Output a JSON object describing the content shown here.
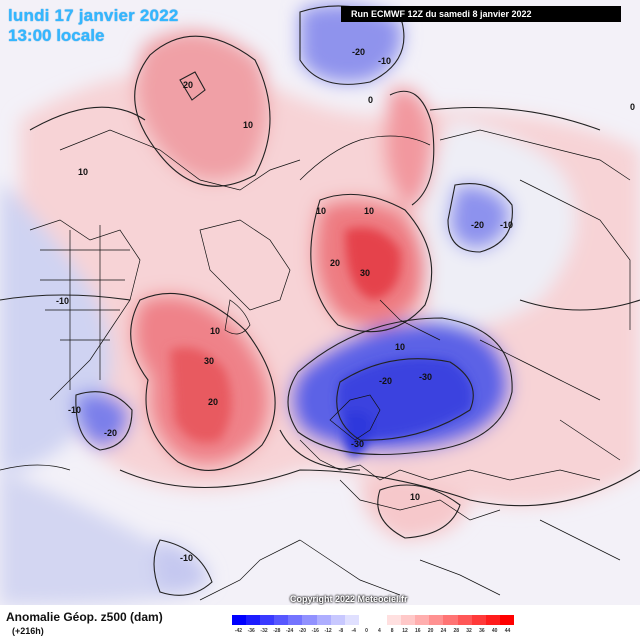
{
  "header": {
    "date": "lundi 17 janvier 2022",
    "time": "13:00 locale",
    "run": "Run ECMWF 12Z du samedi 8 janvier 2022"
  },
  "footer": {
    "title": "Anomalie Géop. z500 (dam)",
    "lead": "(+216h)",
    "copyright": "Copyright 2022 Meteociel.fr"
  },
  "scale": {
    "colors": [
      "#0000ff",
      "#1d1dff",
      "#3a3aff",
      "#5757ff",
      "#7474ff",
      "#9191ff",
      "#aeaeff",
      "#c8c8ff",
      "#e0e0ff",
      "#ffffff",
      "#ffffff",
      "#ffe0e0",
      "#ffc8c8",
      "#ffaeae",
      "#ff9191",
      "#ff7474",
      "#ff5757",
      "#ff3a3a",
      "#ff1d1d",
      "#ff0000"
    ],
    "ticks": [
      "-42",
      "-36",
      "-32",
      "-28",
      "-24",
      "-20",
      "-16",
      "-12",
      "-8",
      "-4",
      "0",
      "4",
      "8",
      "12",
      "16",
      "20",
      "24",
      "28",
      "32",
      "36",
      "40",
      "44"
    ]
  },
  "contour_labels": [
    {
      "text": "20"
    },
    {
      "text": "10"
    },
    {
      "text": "-20"
    },
    {
      "text": "-10"
    },
    {
      "text": "0"
    },
    {
      "text": "10"
    },
    {
      "text": "20"
    },
    {
      "text": "30"
    },
    {
      "text": "10"
    },
    {
      "text": "-20"
    },
    {
      "text": "-10"
    },
    {
      "text": "10"
    },
    {
      "text": "10"
    },
    {
      "text": "30"
    },
    {
      "text": "20"
    },
    {
      "text": "-20"
    },
    {
      "text": "-30"
    },
    {
      "text": "-30"
    },
    {
      "text": "10"
    },
    {
      "text": "-10"
    },
    {
      "text": "-20"
    },
    {
      "text": "-10"
    },
    {
      "text": "10"
    },
    {
      "text": "-10"
    },
    {
      "text": "0"
    }
  ]
}
